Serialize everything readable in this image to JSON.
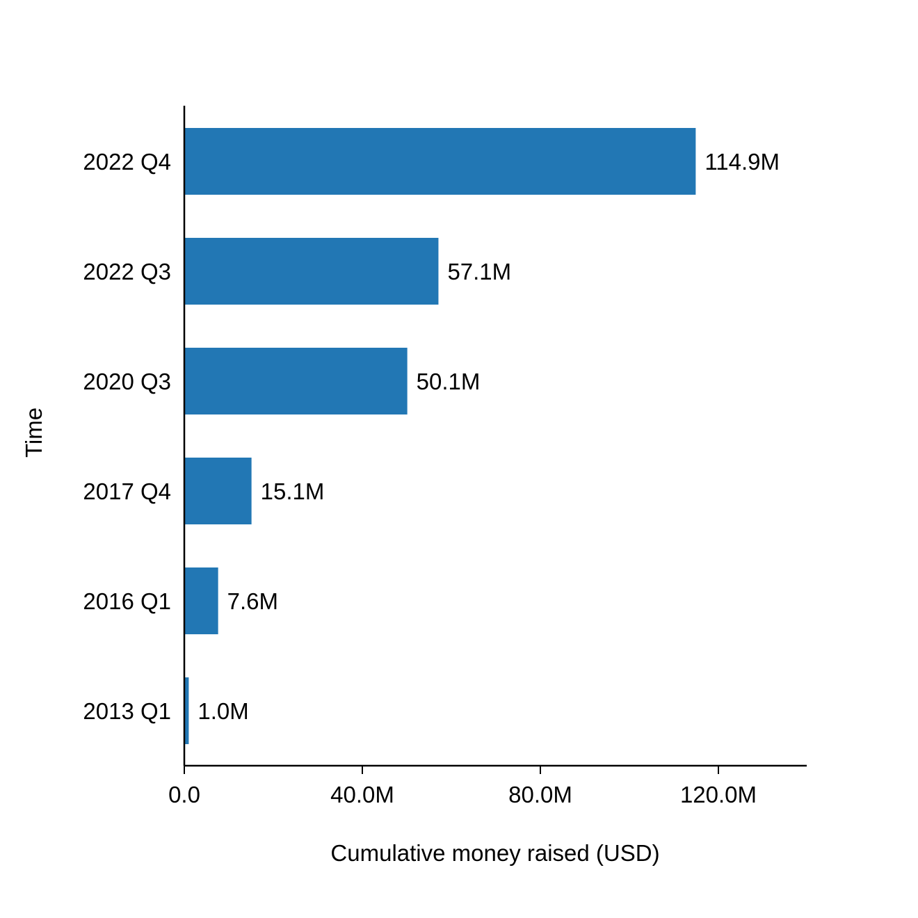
{
  "chart_data": {
    "type": "bar",
    "orientation": "horizontal",
    "categories": [
      "2013 Q1",
      "2016 Q1",
      "2017 Q4",
      "2020 Q3",
      "2022 Q3",
      "2022 Q4"
    ],
    "values": [
      1.0,
      7.6,
      15.1,
      50.1,
      57.1,
      114.9
    ],
    "value_unit": "M",
    "data_labels": [
      "1.0M",
      "7.6M",
      "15.1M",
      "50.1M",
      "57.1M",
      "114.9M"
    ],
    "xlabel": "Cumulative money raised (USD)",
    "ylabel": "Time",
    "xlim": [
      0,
      140
    ],
    "xticks": [
      0,
      40,
      80,
      120
    ],
    "xtick_labels": [
      "0.0",
      "40.0M",
      "80.0M",
      "120.0M"
    ],
    "bar_color": "#2277b4",
    "grid": false,
    "legend": false
  }
}
